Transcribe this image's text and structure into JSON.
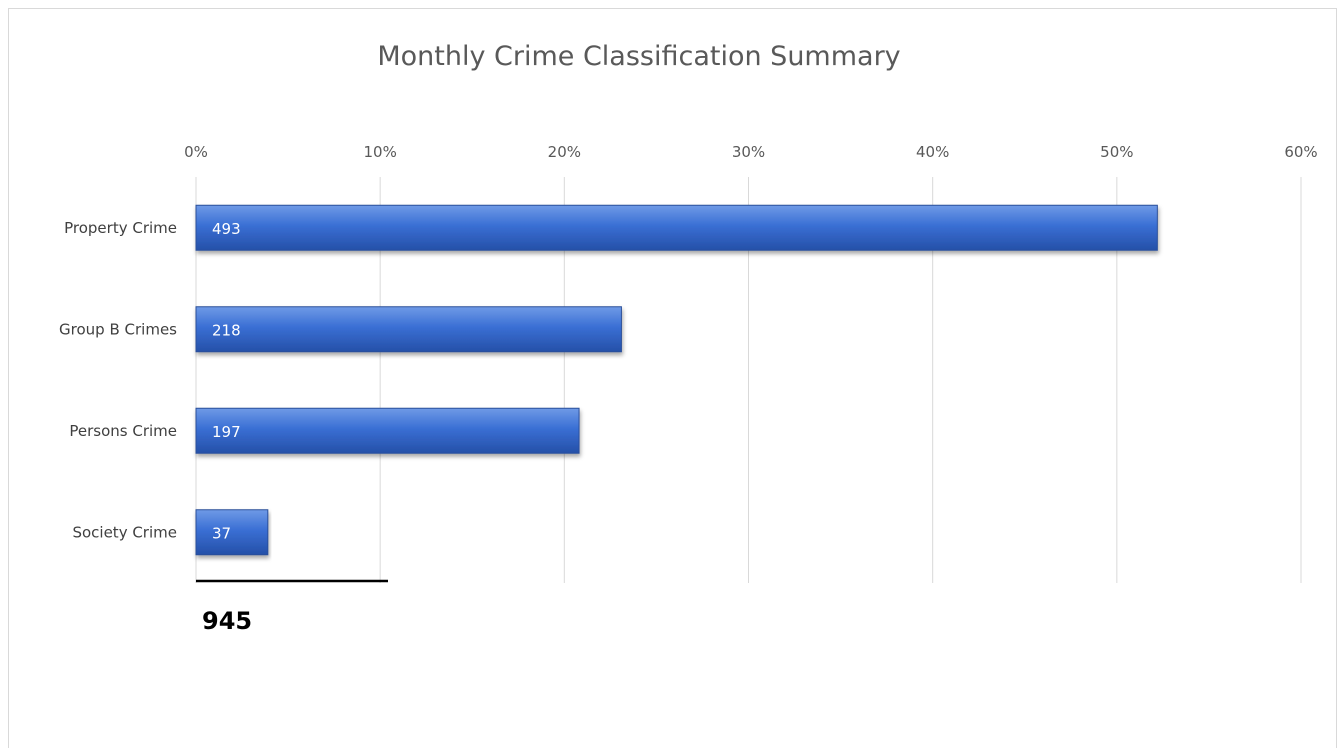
{
  "chart_data": {
    "type": "bar",
    "orientation": "horizontal",
    "title": "Monthly Crime Classification Summary",
    "categories": [
      "Property Crime",
      "Group B Crimes",
      "Persons Crime",
      "Society Crime"
    ],
    "values": [
      493,
      218,
      197,
      37
    ],
    "percent_values": [
      0.522,
      0.231,
      0.208,
      0.039
    ],
    "x_ticks": [
      "0%",
      "10%",
      "20%",
      "30%",
      "40%",
      "50%",
      "60%"
    ],
    "xlim": [
      0,
      0.6
    ],
    "x_axis_position": "top",
    "grid": true,
    "legend": "none",
    "bar_color": "#3366cc",
    "total": "945"
  }
}
